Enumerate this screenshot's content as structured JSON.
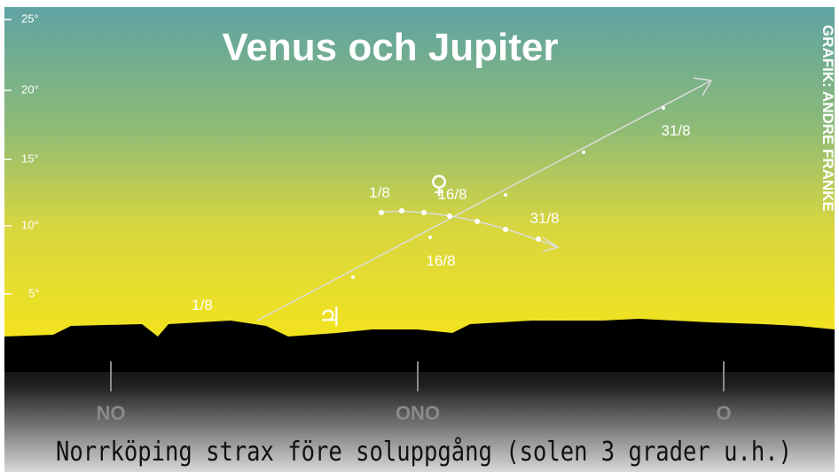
{
  "header": {
    "title": "Venus och Jupiter",
    "credit": "GRAFIK: ANDRÉ FRANKE"
  },
  "altitude_labels": [
    "25°",
    "20°",
    "15°",
    "10°",
    "5°"
  ],
  "venus": {
    "symbol": "♀",
    "dates": [
      "1/8",
      "16/8",
      "31/8"
    ]
  },
  "jupiter": {
    "symbol": "♃",
    "dates": [
      "1/8",
      "16/8",
      "31/8"
    ]
  },
  "directions": [
    "NO",
    "ONO",
    "O"
  ],
  "caption": "Norrköping strax före soluppgång (solen 3 grader u.h.)"
}
